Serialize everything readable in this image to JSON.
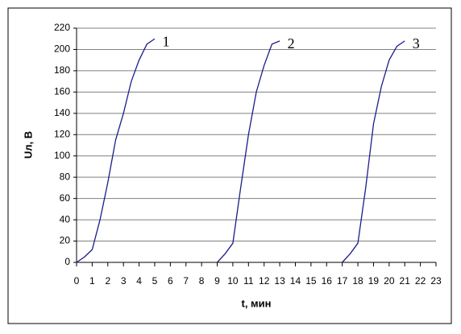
{
  "chart_data": {
    "type": "line",
    "xlabel": "t, мин",
    "ylabel": "Uл, В",
    "series": [
      {
        "name": "1",
        "color": "#1c1c8c",
        "x": [
          0,
          0.5,
          1,
          1.5,
          2,
          2.5,
          3,
          3.5,
          4,
          4.5,
          5
        ],
        "values": [
          0,
          5,
          12,
          40,
          75,
          115,
          140,
          170,
          190,
          205,
          210
        ]
      },
      {
        "name": "2",
        "color": "#1c1c8c",
        "x": [
          9,
          9.5,
          10,
          10.5,
          11,
          11.5,
          12,
          12.5,
          13
        ],
        "values": [
          0,
          8,
          18,
          70,
          120,
          160,
          185,
          205,
          208
        ]
      },
      {
        "name": "3",
        "color": "#1c1c8c",
        "x": [
          17,
          17.5,
          18,
          18.5,
          19,
          19.5,
          20,
          20.5,
          21
        ],
        "values": [
          0,
          8,
          18,
          70,
          130,
          165,
          190,
          203,
          208
        ]
      }
    ],
    "xlim": [
      0,
      23
    ],
    "xticks": [
      0,
      1,
      2,
      3,
      4,
      5,
      6,
      7,
      8,
      9,
      10,
      11,
      12,
      13,
      14,
      15,
      16,
      17,
      18,
      19,
      20,
      21,
      22,
      23
    ],
    "ylim": [
      0,
      220
    ],
    "yticks": [
      0,
      20,
      40,
      60,
      80,
      100,
      120,
      140,
      160,
      180,
      200,
      220
    ],
    "grid": true
  }
}
